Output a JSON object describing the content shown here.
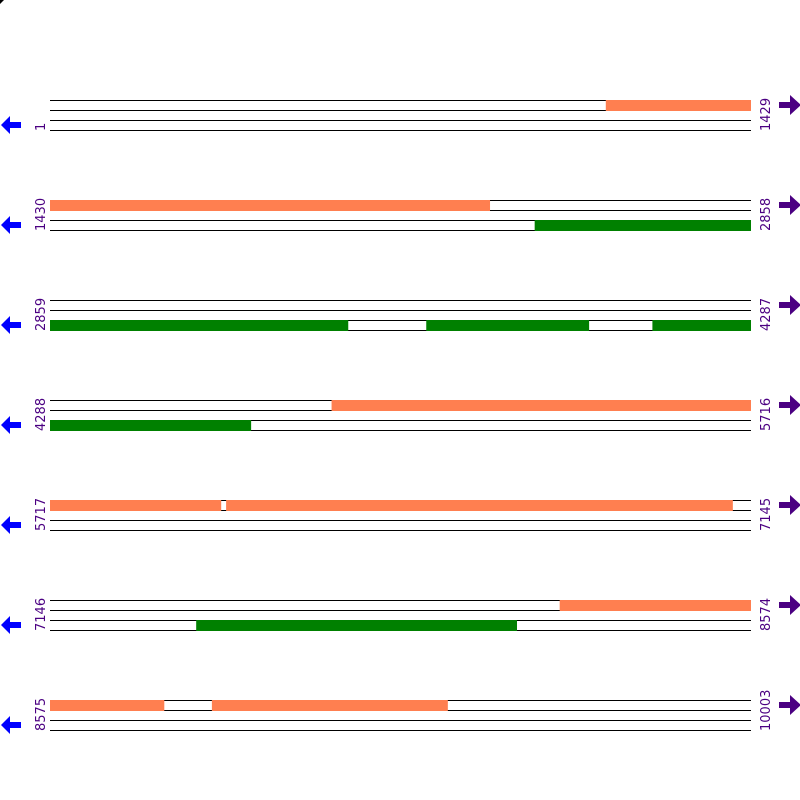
{
  "colors": {
    "forward_feature": "#ff7f50",
    "reverse_feature": "#008000",
    "left_arrow": "#0000ff",
    "right_arrow": "#4b0082",
    "coordinate_text": "#4b0082",
    "track_line": "#000000"
  },
  "icons": {
    "left": "left-arrow-icon",
    "right": "right-arrow-icon"
  },
  "rows": [
    {
      "start_label": "1",
      "end_label": "1429",
      "start": 1,
      "end": 1429,
      "forward_features": [
        {
          "start": 1134,
          "end": 1429
        }
      ],
      "reverse_features": []
    },
    {
      "start_label": "1430",
      "end_label": "2858",
      "start": 1430,
      "end": 2858,
      "forward_features": [
        {
          "start": 1430,
          "end": 2326
        }
      ],
      "reverse_features": [
        {
          "start": 2418,
          "end": 2858
        }
      ]
    },
    {
      "start_label": "2859",
      "end_label": "4287",
      "start": 2859,
      "end": 4287,
      "forward_features": [],
      "reverse_features": [
        {
          "start": 2859,
          "end": 3466
        },
        {
          "start": 3626,
          "end": 3957
        },
        {
          "start": 4087,
          "end": 4287
        }
      ]
    },
    {
      "start_label": "4288",
      "end_label": "5716",
      "start": 4288,
      "end": 5716,
      "forward_features": [
        {
          "start": 4862,
          "end": 5716
        }
      ],
      "reverse_features": [
        {
          "start": 4288,
          "end": 4697
        }
      ]
    },
    {
      "start_label": "5717",
      "end_label": "7145",
      "start": 5717,
      "end": 7145,
      "forward_features": [
        {
          "start": 5717,
          "end": 6065
        },
        {
          "start": 6076,
          "end": 7108
        }
      ],
      "reverse_features": []
    },
    {
      "start_label": "7146",
      "end_label": "8574",
      "start": 7146,
      "end": 8574,
      "forward_features": [
        {
          "start": 8185,
          "end": 8574
        }
      ],
      "reverse_features": [
        {
          "start": 7444,
          "end": 8097
        }
      ]
    },
    {
      "start_label": "8575",
      "end_label": "10003",
      "start": 8575,
      "end": 10003,
      "forward_features": [
        {
          "start": 8575,
          "end": 8807
        },
        {
          "start": 8905,
          "end": 9385
        }
      ],
      "reverse_features": []
    }
  ]
}
